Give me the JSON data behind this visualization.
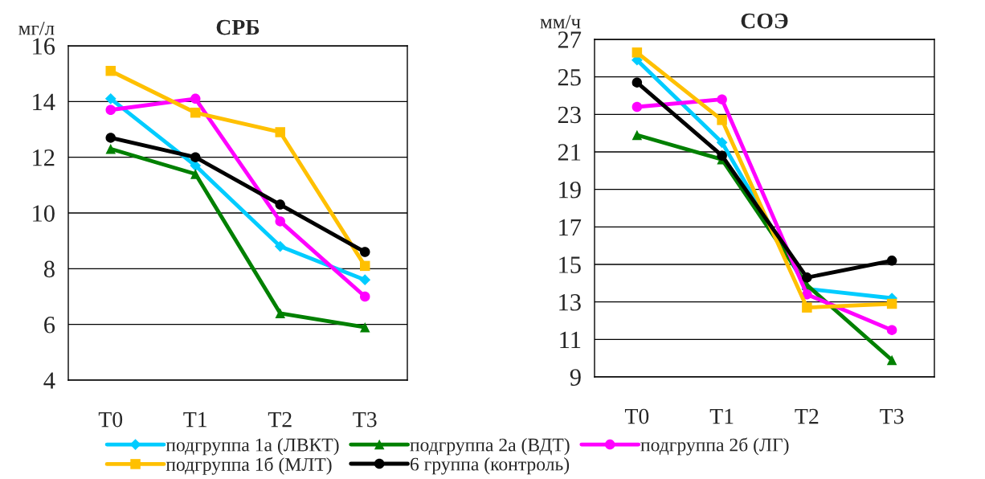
{
  "chart_data": [
    {
      "type": "line",
      "title": "СРБ",
      "ylabel": "мг/л",
      "categories": [
        "T0",
        "T1",
        "T2",
        "T3"
      ],
      "ylim": [
        4,
        16
      ],
      "yticks": [
        4,
        6,
        8,
        10,
        12,
        14,
        16
      ],
      "grid": "y",
      "legend": "bottom",
      "series": [
        {
          "name": "подгруппа 1а (ЛВКТ)",
          "color": "#00ccff",
          "marker": "diamond",
          "values": [
            14.1,
            11.7,
            8.8,
            7.6
          ]
        },
        {
          "name": "подгруппа 2а (ВДТ)",
          "color": "#008000",
          "marker": "triangle",
          "values": [
            12.3,
            11.4,
            6.4,
            5.9
          ]
        },
        {
          "name": "подгруппа 2б (ЛГ)",
          "color": "#ff00ff",
          "marker": "circle",
          "values": [
            13.7,
            14.1,
            9.7,
            7.0
          ]
        },
        {
          "name": "подгруппа 1б (МЛТ)",
          "color": "#ffc000",
          "marker": "square",
          "values": [
            15.1,
            13.6,
            12.9,
            8.1
          ]
        },
        {
          "name": "6 группа (контроль)",
          "color": "#000000",
          "marker": "circle",
          "values": [
            12.7,
            12.0,
            10.3,
            8.6
          ]
        }
      ]
    },
    {
      "type": "line",
      "title": "СОЭ",
      "ylabel": "мм/ч",
      "categories": [
        "T0",
        "T1",
        "T2",
        "T3"
      ],
      "ylim": [
        9,
        27
      ],
      "yticks": [
        9,
        11,
        13,
        15,
        17,
        19,
        21,
        23,
        25,
        27
      ],
      "grid": "y",
      "series": [
        {
          "color": "#00ccff",
          "marker": "diamond",
          "values": [
            25.9,
            21.5,
            13.7,
            13.2
          ]
        },
        {
          "color": "#008000",
          "marker": "triangle",
          "values": [
            21.9,
            20.6,
            13.9,
            9.9
          ]
        },
        {
          "color": "#ff00ff",
          "marker": "circle",
          "values": [
            23.4,
            23.8,
            13.4,
            11.5
          ]
        },
        {
          "color": "#ffc000",
          "marker": "square",
          "values": [
            26.3,
            22.7,
            12.7,
            12.9
          ]
        },
        {
          "color": "#000000",
          "marker": "circle",
          "values": [
            24.7,
            20.8,
            14.3,
            15.2
          ]
        }
      ]
    }
  ]
}
